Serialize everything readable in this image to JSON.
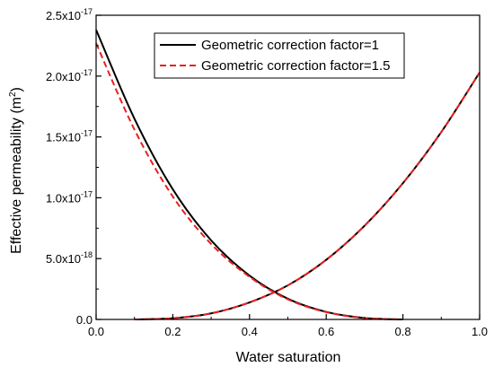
{
  "chart_data": {
    "type": "line",
    "xlabel": "Water saturation",
    "ylabel": "Effective permeability (m2)",
    "xlim": [
      0.0,
      1.0
    ],
    "ylim": [
      0.0,
      2.5e-17
    ],
    "x_ticks": [
      "0.0",
      "0.2",
      "0.4",
      "0.6",
      "0.8",
      "1.0"
    ],
    "y_ticks": [
      {
        "mant": "0.0",
        "exp": ""
      },
      {
        "mant": "5.0x10",
        "exp": "-18"
      },
      {
        "mant": "1.0x10",
        "exp": "-17"
      },
      {
        "mant": "1.5x10",
        "exp": "-17"
      },
      {
        "mant": "2.0x10",
        "exp": "-17"
      },
      {
        "mant": "2.5x10",
        "exp": "-17"
      }
    ],
    "legend_position": "top-right",
    "series": [
      {
        "name": "Geometric correction factor=1",
        "color": "#000000",
        "style": "solid",
        "curves": [
          {
            "x": [
              0.0,
              0.1,
              0.2,
              0.3,
              0.4,
              0.5,
              0.6,
              0.7,
              0.8
            ],
            "y": [
              2.38e-17,
              1.65e-17,
              1.07e-17,
              6.5e-18,
              3.6e-18,
              1.7e-18,
              6.2e-19,
              1.2e-19,
              0.0
            ]
          },
          {
            "x": [
              0.1,
              0.2,
              0.3,
              0.4,
              0.5,
              0.6,
              0.7,
              0.8,
              0.9,
              1.0
            ],
            "y": [
              0.0,
              1e-19,
              5e-19,
              1.4e-18,
              2.8e-18,
              4.9e-18,
              7.7e-18,
              1.12e-17,
              1.54e-17,
              2.03e-17
            ]
          }
        ]
      },
      {
        "name": "Geometric correction factor=1.5",
        "color": "#e8211f",
        "style": "dashed",
        "curves": [
          {
            "x": [
              0.0,
              0.1,
              0.2,
              0.3,
              0.4,
              0.5,
              0.6,
              0.7,
              0.8
            ],
            "y": [
              2.27e-17,
              1.56e-17,
              1.01e-17,
              6.2e-18,
              3.5e-18,
              1.65e-18,
              6e-19,
              1.1e-19,
              0.0
            ]
          },
          {
            "x": [
              0.1,
              0.2,
              0.3,
              0.4,
              0.5,
              0.6,
              0.7,
              0.8,
              0.9,
              1.0
            ],
            "y": [
              0.0,
              1e-19,
              5e-19,
              1.4e-18,
              2.8e-18,
              4.9e-18,
              7.7e-18,
              1.12e-17,
              1.54e-17,
              2.03e-17
            ]
          }
        ]
      }
    ]
  }
}
